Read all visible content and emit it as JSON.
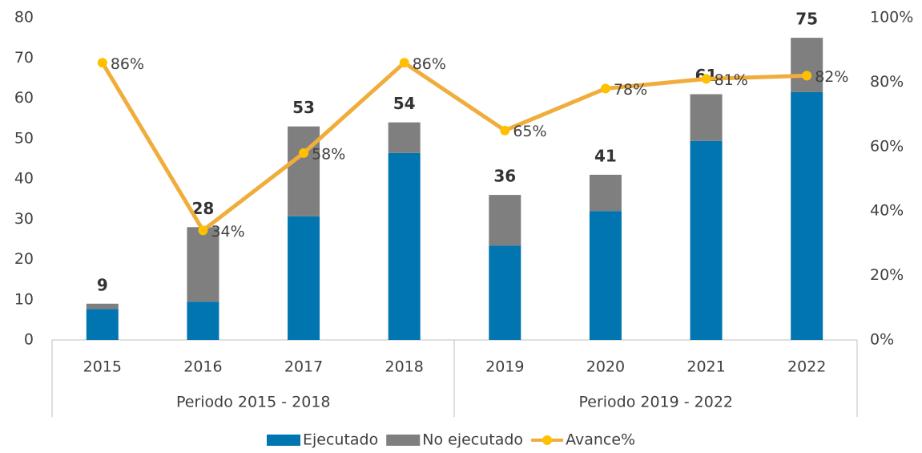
{
  "chart_data": {
    "type": "bar_line",
    "categories": [
      "2015",
      "2016",
      "2017",
      "2018",
      "2019",
      "2020",
      "2021",
      "2022"
    ],
    "groups": [
      "Periodo 2015 - 2018",
      "Periodo 2019 - 2022"
    ],
    "series": [
      {
        "name": "Ejecutado",
        "color": "#0075b0",
        "type": "bar",
        "values": [
          7.7,
          9.5,
          30.7,
          46.4,
          23.4,
          32,
          49.4,
          61.5
        ]
      },
      {
        "name": "No ejecutado",
        "color": "#7f7f80",
        "type": "bar",
        "values": [
          1.3,
          18.5,
          22.3,
          7.6,
          12.6,
          9,
          11.6,
          13.5
        ]
      },
      {
        "name": "Avance%",
        "color": "#f0ad3c",
        "marker_color": "#ffc000",
        "type": "line",
        "axis": "y2",
        "values": [
          86,
          34,
          58,
          86,
          65,
          78,
          81,
          82
        ],
        "value_labels": [
          "86%",
          "34%",
          "58%",
          "86%",
          "65%",
          "78%",
          "81%",
          "82%"
        ]
      }
    ],
    "totals": [
      9,
      28,
      53,
      54,
      36,
      41,
      61,
      75
    ],
    "ylim": [
      0,
      80
    ],
    "yticks": [
      0,
      10,
      20,
      30,
      40,
      50,
      60,
      70,
      80
    ],
    "y2lim": [
      0,
      100
    ],
    "y2ticks": [
      {
        "value": 0,
        "label": "0%"
      },
      {
        "value": 20,
        "label": "20%"
      },
      {
        "value": 40,
        "label": "40%"
      },
      {
        "value": 60,
        "label": "60%"
      },
      {
        "value": 80,
        "label": "80%"
      },
      {
        "value": 100,
        "label": "100%"
      }
    ],
    "legend": "bottom"
  }
}
